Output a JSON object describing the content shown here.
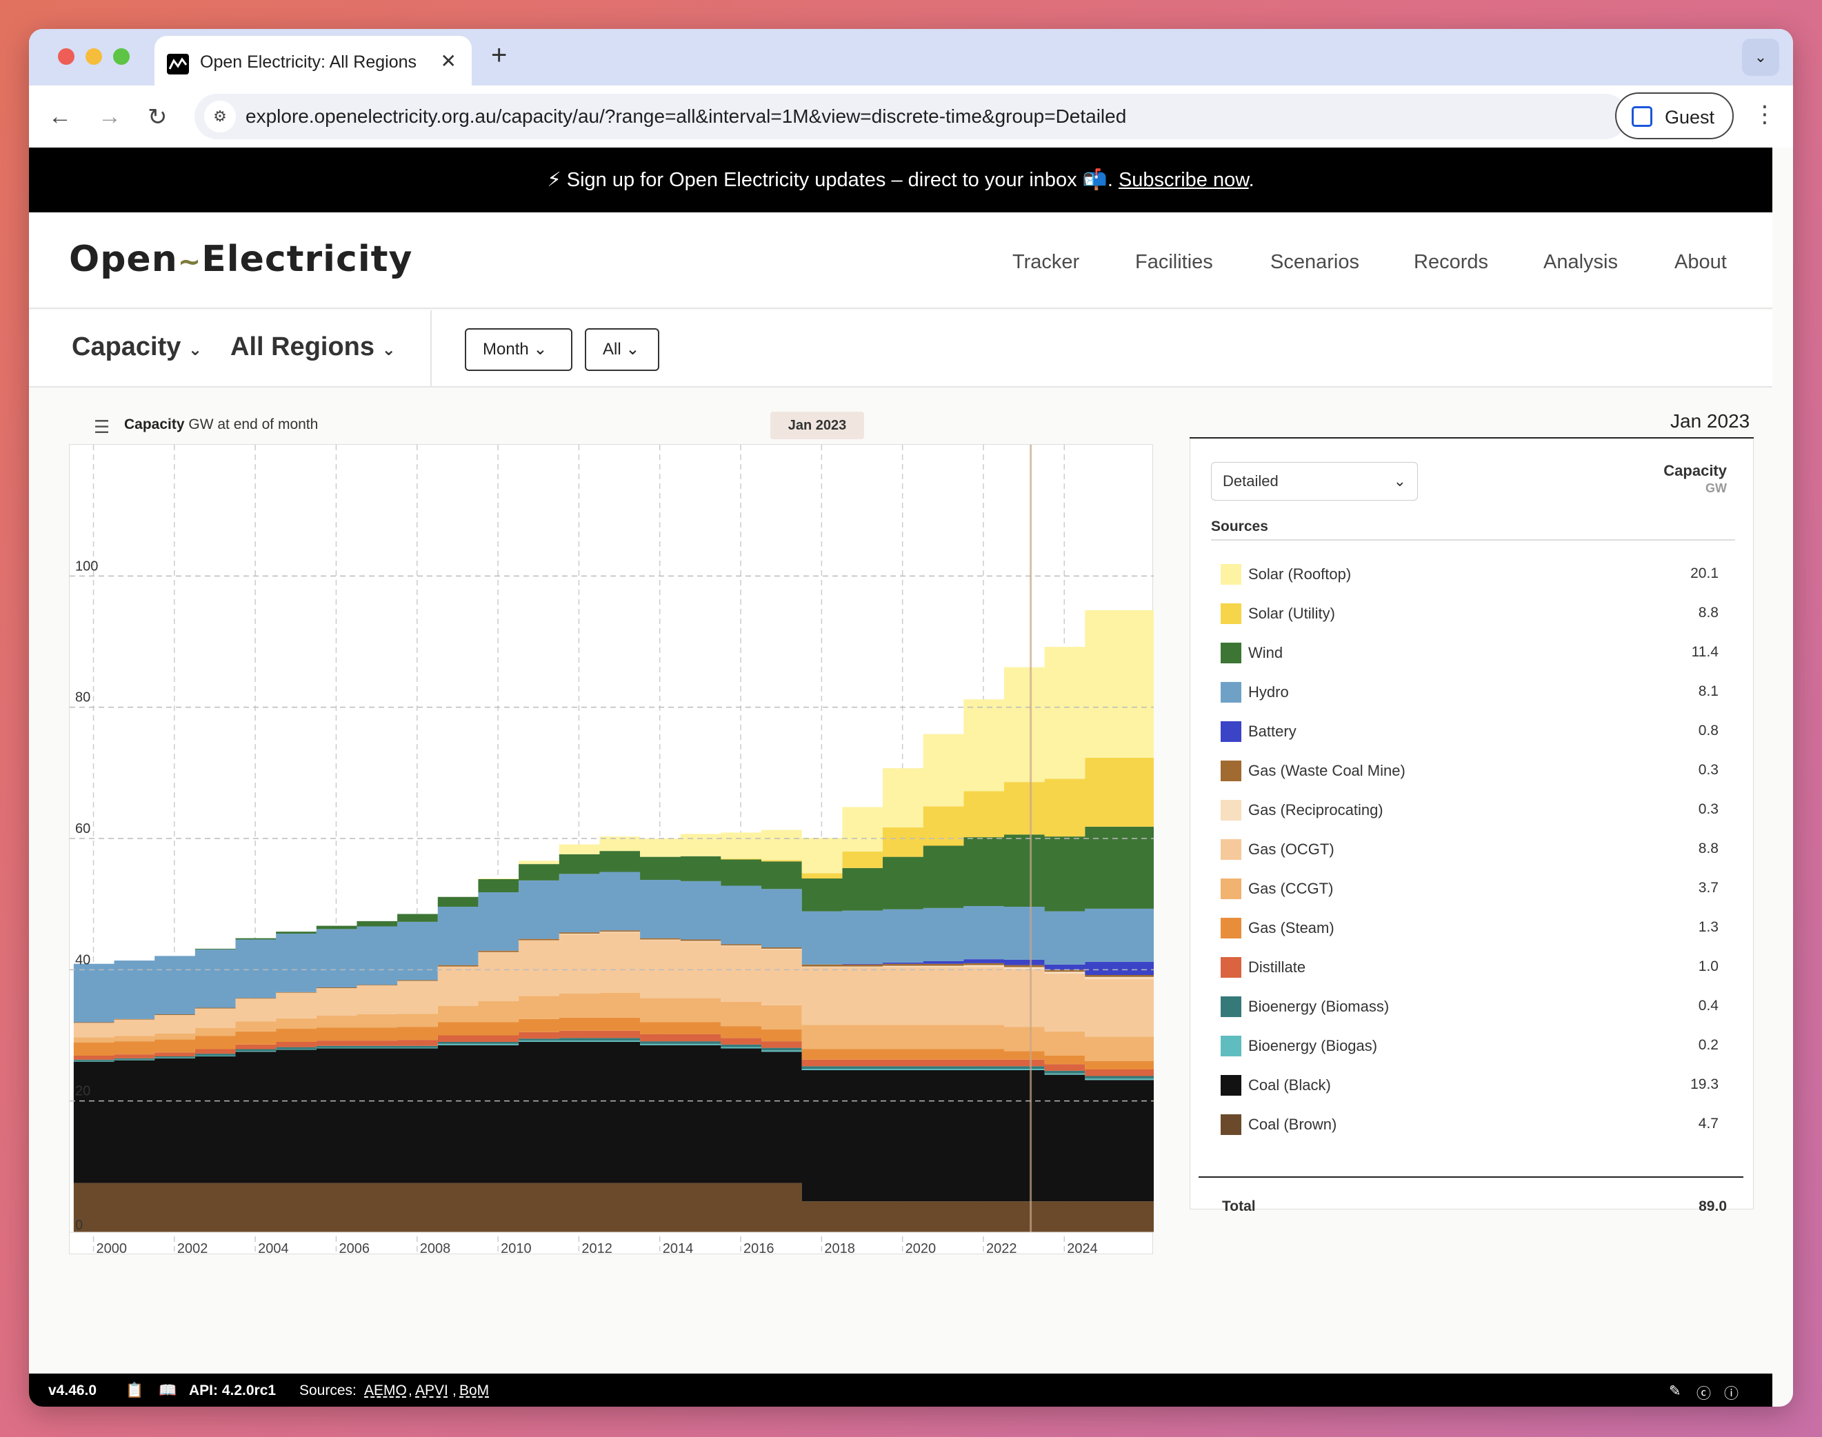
{
  "browser": {
    "tab_title": "Open Electricity: All Regions",
    "url": "explore.openelectricity.org.au/capacity/au/?range=all&interval=1M&view=discrete-time&group=Detailed",
    "profile": "Guest"
  },
  "banner": {
    "text": "⚡ Sign up for Open Electricity updates – direct to your inbox 📬. ",
    "link": "Subscribe now"
  },
  "site": {
    "logo_left": "Open",
    "logo_right": "Electricity",
    "nav": [
      "Tracker",
      "Facilities",
      "Scenarios",
      "Records",
      "Analysis",
      "About"
    ]
  },
  "controls": {
    "metric": "Capacity",
    "region": "All Regions",
    "interval": "Month",
    "range": "All"
  },
  "chart": {
    "title": "Capacity",
    "unit_label": "GW at end of month",
    "hover_date": "Jan 2023"
  },
  "legend": {
    "date": "Jan 2023",
    "group": "Detailed",
    "col_title": "Capacity",
    "col_unit": "GW",
    "sources_label": "Sources",
    "total_label": "Total",
    "total_value": "89.0"
  },
  "chart_data": {
    "type": "area",
    "title": "Capacity",
    "ylabel": "GW at end of month",
    "ylim": [
      0,
      120
    ],
    "y_ticks": [
      0,
      20,
      40,
      60,
      80,
      100
    ],
    "x_ticks": [
      "2000",
      "2002",
      "2004",
      "2006",
      "2008",
      "2010",
      "2012",
      "2014",
      "2016",
      "2018",
      "2020",
      "2022",
      "2024"
    ],
    "x": [
      1999,
      2000,
      2001,
      2002,
      2003,
      2004,
      2005,
      2006,
      2007,
      2008,
      2009,
      2010,
      2011,
      2012,
      2013,
      2014,
      2015,
      2016,
      2017,
      2018,
      2019,
      2020,
      2021,
      2022,
      2023,
      2024,
      2025.7
    ],
    "series": [
      {
        "name": "Coal (Brown)",
        "color": "#6b4a2b",
        "values": [
          7.5,
          7.5,
          7.5,
          7.5,
          7.5,
          7.5,
          7.5,
          7.5,
          7.5,
          7.5,
          7.5,
          7.5,
          7.5,
          7.5,
          7.5,
          7.5,
          7.5,
          7.5,
          4.7,
          4.7,
          4.7,
          4.7,
          4.7,
          4.7,
          4.7,
          4.7,
          4.7
        ]
      },
      {
        "name": "Coal (Black)",
        "color": "#121212",
        "values": [
          18.5,
          18.7,
          19,
          19.3,
          20,
          20.3,
          20.5,
          20.5,
          20.5,
          21,
          21,
          21.5,
          21.5,
          21.5,
          21,
          21,
          20.5,
          20,
          20,
          20,
          20,
          20,
          20,
          20,
          19.3,
          18.5,
          17.7
        ]
      },
      {
        "name": "Bioenergy (Biogas)",
        "color": "#5fbdbf",
        "values": [
          0.1,
          0.1,
          0.1,
          0.1,
          0.1,
          0.1,
          0.1,
          0.1,
          0.1,
          0.2,
          0.2,
          0.2,
          0.2,
          0.2,
          0.2,
          0.2,
          0.2,
          0.2,
          0.2,
          0.2,
          0.2,
          0.2,
          0.2,
          0.2,
          0.2,
          0.2,
          0.2
        ]
      },
      {
        "name": "Bioenergy (Biomass)",
        "color": "#367979",
        "values": [
          0.2,
          0.2,
          0.2,
          0.3,
          0.3,
          0.3,
          0.3,
          0.3,
          0.3,
          0.3,
          0.3,
          0.3,
          0.4,
          0.4,
          0.4,
          0.4,
          0.4,
          0.4,
          0.4,
          0.4,
          0.4,
          0.4,
          0.4,
          0.4,
          0.4,
          0.4,
          0.4
        ]
      },
      {
        "name": "Distillate",
        "color": "#d9643f",
        "values": [
          0.6,
          0.6,
          0.6,
          0.7,
          0.7,
          0.8,
          0.8,
          0.8,
          0.9,
          1,
          1,
          1,
          1.1,
          1.1,
          1.1,
          1.1,
          1,
          1,
          1,
          1,
          1,
          1,
          1,
          1,
          1,
          1,
          1
        ]
      },
      {
        "name": "Gas (Steam)",
        "color": "#e88e3a",
        "values": [
          2,
          2,
          2,
          2,
          2,
          2,
          2,
          2,
          2,
          2,
          2,
          2,
          2,
          2,
          1.8,
          1.8,
          1.8,
          1.8,
          1.6,
          1.6,
          1.6,
          1.6,
          1.6,
          1.3,
          1.3,
          1.3,
          1.3
        ]
      },
      {
        "name": "Gas (CCGT)",
        "color": "#f1b36f",
        "values": [
          0.8,
          0.8,
          0.9,
          1.2,
          1.5,
          1.6,
          1.8,
          2,
          2,
          2.5,
          3.2,
          3.5,
          3.7,
          3.8,
          3.7,
          3.7,
          3.7,
          3.7,
          3.7,
          3.7,
          3.7,
          3.7,
          3.7,
          3.7,
          3.7,
          3.7,
          3.7
        ]
      },
      {
        "name": "Gas (OCGT)",
        "color": "#f6c99b",
        "values": [
          2.2,
          2.5,
          2.8,
          3,
          3.5,
          3.9,
          4.2,
          4.4,
          5,
          6,
          7.5,
          8.5,
          9,
          9.2,
          8.8,
          8.6,
          8.5,
          8.5,
          8.8,
          8.8,
          8.8,
          8.8,
          8.8,
          8.8,
          8.8,
          8.8,
          9
        ]
      },
      {
        "name": "Gas (Reciprocating)",
        "color": "#f7dfc0",
        "values": [
          0,
          0,
          0,
          0,
          0,
          0,
          0,
          0,
          0,
          0,
          0,
          0,
          0.1,
          0.1,
          0.1,
          0.1,
          0.1,
          0.1,
          0.1,
          0.1,
          0.2,
          0.2,
          0.3,
          0.3,
          0.3,
          0.3,
          0.3
        ]
      },
      {
        "name": "Gas (Waste Coal Mine)",
        "color": "#a06a30",
        "values": [
          0.1,
          0.1,
          0.1,
          0.1,
          0.1,
          0.1,
          0.1,
          0.1,
          0.1,
          0.2,
          0.2,
          0.2,
          0.2,
          0.2,
          0.2,
          0.2,
          0.2,
          0.2,
          0.3,
          0.3,
          0.3,
          0.3,
          0.3,
          0.3,
          0.3,
          0.3,
          0.3
        ]
      },
      {
        "name": "Battery",
        "color": "#3b43c7",
        "values": [
          0,
          0,
          0,
          0,
          0,
          0,
          0,
          0,
          0,
          0,
          0,
          0,
          0,
          0,
          0,
          0,
          0,
          0,
          0,
          0.1,
          0.2,
          0.4,
          0.6,
          0.8,
          0.8,
          2,
          6.5
        ]
      },
      {
        "name": "Hydro",
        "color": "#6fa1c7",
        "values": [
          8.9,
          8.9,
          8.9,
          8.9,
          8.9,
          8.9,
          8.9,
          8.9,
          8.9,
          8.9,
          8.9,
          8.9,
          8.9,
          8.9,
          8.9,
          8.9,
          8.9,
          8.9,
          8.1,
          8.1,
          8.1,
          8.1,
          8.1,
          8.1,
          8.1,
          8.1,
          8.1
        ]
      },
      {
        "name": "Wind",
        "color": "#3d7535",
        "values": [
          0,
          0,
          0,
          0.1,
          0.2,
          0.3,
          0.5,
          0.8,
          1.2,
          1.5,
          2,
          2.5,
          3,
          3.2,
          3.5,
          3.8,
          4,
          4.2,
          5,
          6.5,
          8,
          9.5,
          10.5,
          11,
          11.4,
          12.5,
          16.5
        ]
      },
      {
        "name": "Solar (Utility)",
        "color": "#f7d54a",
        "values": [
          0,
          0,
          0,
          0,
          0,
          0,
          0,
          0,
          0,
          0,
          0,
          0,
          0,
          0,
          0,
          0,
          0.1,
          0.2,
          0.8,
          2.5,
          4.5,
          6,
          7,
          8,
          8.8,
          10.5,
          13
        ]
      },
      {
        "name": "Solar (Rooftop)",
        "color": "#fdf3a3",
        "values": [
          0,
          0,
          0,
          0,
          0,
          0,
          0,
          0,
          0,
          0,
          0.1,
          0.5,
          1.5,
          2.2,
          2.8,
          3.4,
          4,
          4.6,
          5.4,
          6.8,
          9,
          11,
          14,
          17.5,
          20.1,
          22.5,
          25
        ]
      }
    ],
    "hover_index": 24
  },
  "legend_rows": [
    {
      "name": "Solar (Rooftop)",
      "value": "20.1",
      "color": "#fdf3a3"
    },
    {
      "name": "Solar (Utility)",
      "value": "8.8",
      "color": "#f7d54a"
    },
    {
      "name": "Wind",
      "value": "11.4",
      "color": "#3d7535"
    },
    {
      "name": "Hydro",
      "value": "8.1",
      "color": "#6fa1c7"
    },
    {
      "name": "Battery",
      "value": "0.8",
      "color": "#3b43c7"
    },
    {
      "name": "Gas (Waste Coal Mine)",
      "value": "0.3",
      "color": "#a06a30"
    },
    {
      "name": "Gas (Reciprocating)",
      "value": "0.3",
      "color": "#f7dfc0"
    },
    {
      "name": "Gas (OCGT)",
      "value": "8.8",
      "color": "#f6c99b"
    },
    {
      "name": "Gas (CCGT)",
      "value": "3.7",
      "color": "#f1b36f"
    },
    {
      "name": "Gas (Steam)",
      "value": "1.3",
      "color": "#e88e3a"
    },
    {
      "name": "Distillate",
      "value": "1.0",
      "color": "#d9643f"
    },
    {
      "name": "Bioenergy (Biomass)",
      "value": "0.4",
      "color": "#367979"
    },
    {
      "name": "Bioenergy (Biogas)",
      "value": "0.2",
      "color": "#5fbdbf"
    },
    {
      "name": "Coal (Black)",
      "value": "19.3",
      "color": "#121212"
    },
    {
      "name": "Coal (Brown)",
      "value": "4.7",
      "color": "#6b4a2b"
    }
  ],
  "footer": {
    "version": "v4.46.0",
    "api": "API: 4.2.0rc1",
    "sources_prefix": "Sources:",
    "sources": [
      "AEMO",
      "APVI",
      "BoM"
    ]
  }
}
